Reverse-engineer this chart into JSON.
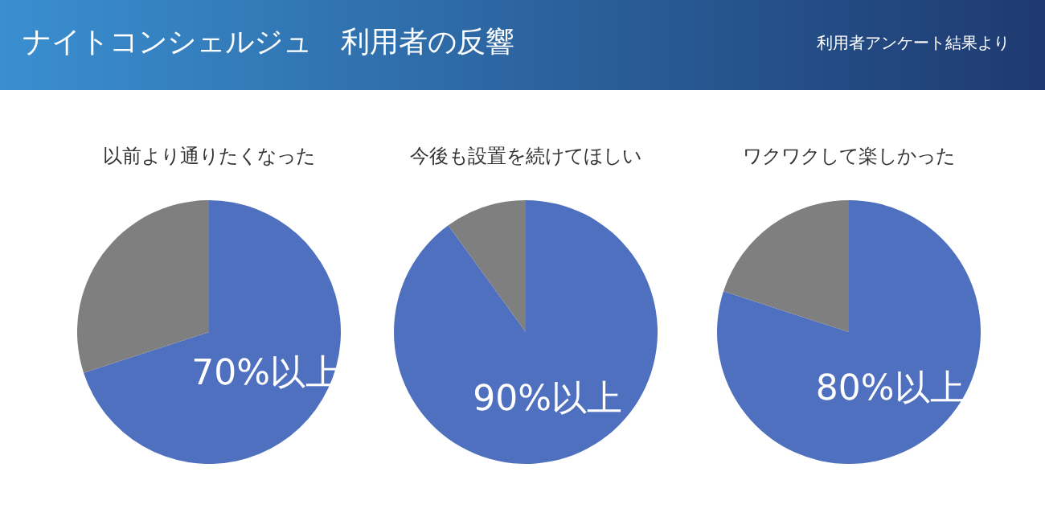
{
  "chart_data": [
    {
      "type": "other",
      "title": "ナイトコンシェルジュ　利用者の反響",
      "annotations": [
        "利用者アンケート結果より"
      ]
    },
    {
      "type": "pie",
      "title": "以前より通りたくなった",
      "categories": [
        null,
        null
      ],
      "values": [
        70,
        30
      ],
      "colors": [
        "#4f6fbf",
        "#7f7f7f"
      ],
      "value_labels": [
        "70%以上",
        null
      ]
    },
    {
      "type": "pie",
      "title": "今後も設置を続けてほしい",
      "categories": [
        null,
        null
      ],
      "values": [
        90,
        10
      ],
      "colors": [
        "#4f6fbf",
        "#7f7f7f"
      ],
      "value_labels": [
        "90%以上",
        null
      ]
    },
    {
      "type": "pie",
      "title": "ワクワクして楽しかった",
      "categories": [
        null,
        null
      ],
      "values": [
        80,
        20
      ],
      "colors": [
        "#4f6fbf",
        "#7f7f7f"
      ],
      "value_labels": [
        "80%以上",
        null
      ]
    }
  ]
}
